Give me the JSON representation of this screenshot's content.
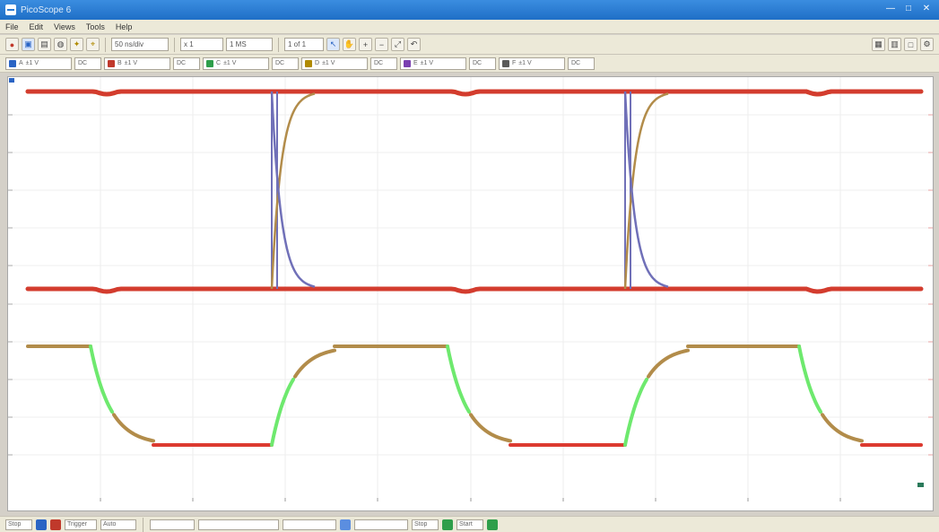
{
  "window": {
    "title": "PicoScope 6"
  },
  "menu": {
    "items": [
      "File",
      "Edit",
      "Views",
      "Tools",
      "Help"
    ]
  },
  "toolbar": {
    "timebase": "50 ns/div",
    "zoom": "x 1",
    "samples": "1 MS",
    "capture": "1 of 1"
  },
  "channels": [
    {
      "label": "A",
      "range": "±1 V",
      "coupling": "DC",
      "color": "#2a64c4"
    },
    {
      "label": "B",
      "range": "±1 V",
      "coupling": "DC",
      "color": "#c0392b"
    },
    {
      "label": "C",
      "range": "±1 V",
      "coupling": "DC",
      "color": "#2e9e4a"
    },
    {
      "label": "D",
      "range": "±1 V",
      "coupling": "DC",
      "color": "#b08a00"
    },
    {
      "label": "E",
      "range": "±1 V",
      "coupling": "DC",
      "color": "#7a3fb0"
    },
    {
      "label": "F",
      "range": "±1 V",
      "coupling": "DC",
      "color": "#5a5a5a"
    }
  ],
  "status": {
    "trigger_label": "Trigger",
    "trigger_mode": "Auto",
    "stop_label": "Stop",
    "start_label": "Start"
  },
  "colors": {
    "background": "#ffffff",
    "top_trace_a": "#d33c2e",
    "top_trace_b": "#e0a238",
    "crossing_trace": "#7070b8",
    "bottom_trace_high": "#b28c4a",
    "bottom_trace_edge": "#6ee96e",
    "bottom_trace_low": "#dc3a30"
  }
}
